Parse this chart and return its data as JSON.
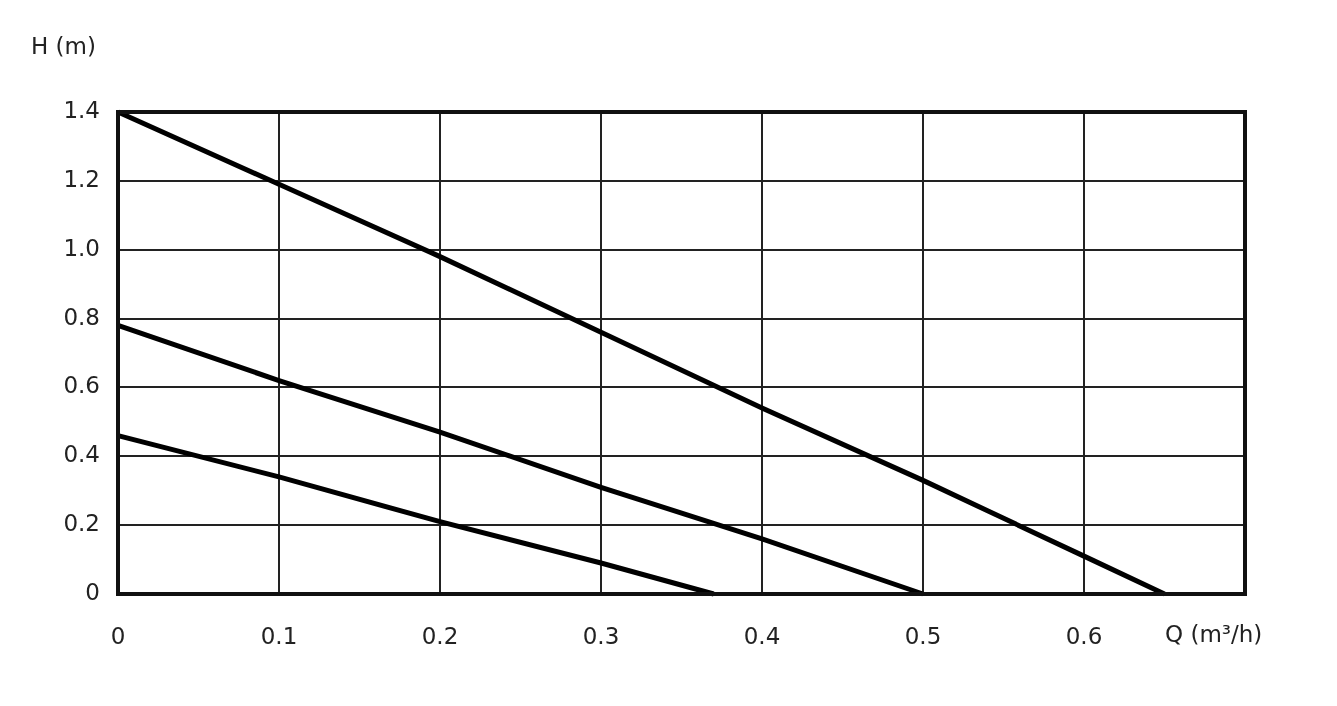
{
  "chart_data": {
    "type": "line",
    "xlabel": "Q (m³/h)",
    "ylabel": "H (m)",
    "xlim": [
      0,
      0.7
    ],
    "xticks": [
      0,
      0.1,
      0.2,
      0.3,
      0.4,
      0.5,
      0.6
    ],
    "ylim": [
      0,
      1.4
    ],
    "yticks": [
      0,
      0.2,
      0.4,
      0.6,
      0.8,
      {
        "value": 1,
        "label": "1.0"
      },
      1.2,
      1.4
    ],
    "grid": true,
    "legend": false,
    "series": [
      {
        "color": "#000000",
        "x": [
          0,
          0.1,
          0.2,
          0.3,
          0.4,
          0.5,
          0.6,
          0.65
        ],
        "values": [
          1.4,
          1.19,
          0.98,
          0.76,
          0.54,
          0.33,
          0.11,
          0
        ]
      },
      {
        "color": "#000000",
        "x": [
          0,
          0.1,
          0.2,
          0.3,
          0.4,
          0.5
        ],
        "values": [
          0.78,
          0.62,
          0.47,
          0.31,
          0.16,
          0
        ]
      },
      {
        "color": "#000000",
        "x": [
          0,
          0.1,
          0.2,
          0.3,
          0.37
        ],
        "values": [
          0.46,
          0.34,
          0.21,
          0.09,
          0
        ]
      }
    ]
  }
}
